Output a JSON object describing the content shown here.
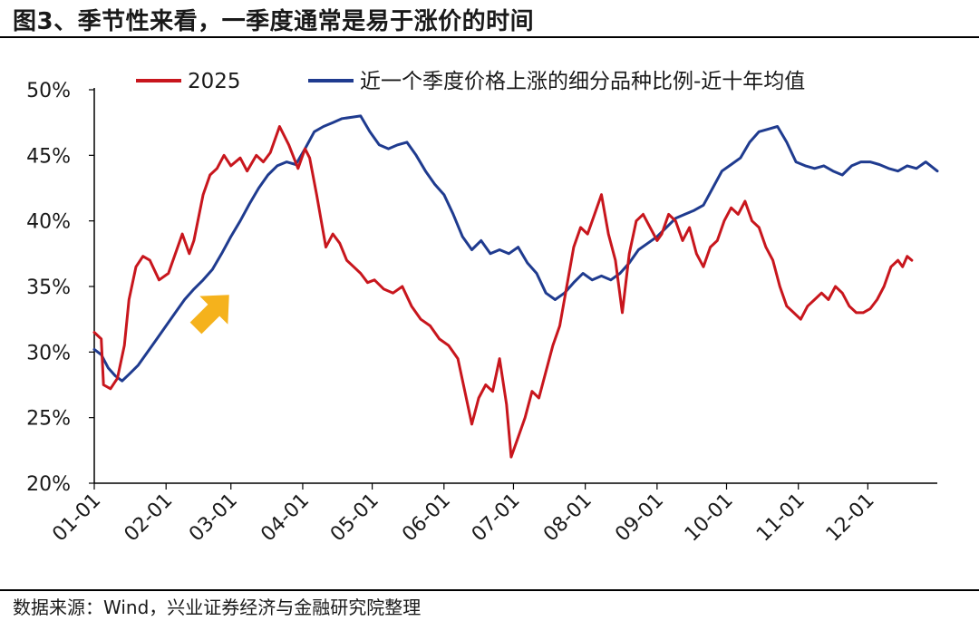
{
  "figure": {
    "title": "图3、季节性来看，一季度通常是易于涨价的时间",
    "source": "数据来源：Wind，兴业证券经济与金融研究院整理"
  },
  "colors": {
    "series_2025": "#c8161d",
    "series_avg": "#1f3b8f",
    "arrow": "#f5b21c",
    "axis": "#000000"
  },
  "chart_data": {
    "type": "line",
    "ylim": [
      20,
      50
    ],
    "y_ticks": [
      "20%",
      "25%",
      "30%",
      "35%",
      "40%",
      "45%",
      "50%"
    ],
    "y_tick_values": [
      20,
      25,
      30,
      35,
      40,
      45,
      50
    ],
    "x_ticks": [
      "01-01",
      "02-01",
      "03-01",
      "04-01",
      "05-01",
      "06-01",
      "07-01",
      "08-01",
      "09-01",
      "10-01",
      "11-01",
      "12-01"
    ],
    "xlim": [
      "01-01",
      "12-31"
    ],
    "legend_position": "top",
    "grid": false,
    "annotation": "yellow arrow pointing up-right near early March",
    "series": [
      {
        "name": "2025",
        "color": "#c8161d",
        "points": [
          [
            "01-01",
            31.5
          ],
          [
            "01-04",
            31.0
          ],
          [
            "01-05",
            27.5
          ],
          [
            "01-08",
            27.2
          ],
          [
            "01-11",
            28.0
          ],
          [
            "01-14",
            30.5
          ],
          [
            "01-16",
            34.0
          ],
          [
            "01-19",
            36.5
          ],
          [
            "01-22",
            37.3
          ],
          [
            "01-25",
            37.0
          ],
          [
            "01-29",
            35.5
          ],
          [
            "02-02",
            36.0
          ],
          [
            "02-06",
            38.0
          ],
          [
            "02-08",
            39.0
          ],
          [
            "02-11",
            37.5
          ],
          [
            "02-13",
            38.5
          ],
          [
            "02-17",
            42.0
          ],
          [
            "02-20",
            43.5
          ],
          [
            "02-23",
            44.0
          ],
          [
            "02-26",
            45.0
          ],
          [
            "03-01",
            44.2
          ],
          [
            "03-05",
            44.8
          ],
          [
            "03-08",
            43.8
          ],
          [
            "03-12",
            45.0
          ],
          [
            "03-15",
            44.5
          ],
          [
            "03-18",
            45.2
          ],
          [
            "03-22",
            47.2
          ],
          [
            "03-26",
            45.8
          ],
          [
            "03-30",
            44.0
          ],
          [
            "04-02",
            45.5
          ],
          [
            "04-04",
            44.8
          ],
          [
            "04-07",
            42.0
          ],
          [
            "04-09",
            40.0
          ],
          [
            "04-11",
            38.0
          ],
          [
            "04-14",
            39.0
          ],
          [
            "04-17",
            38.3
          ],
          [
            "04-20",
            37.0
          ],
          [
            "04-23",
            36.5
          ],
          [
            "04-26",
            36.0
          ],
          [
            "04-29",
            35.3
          ],
          [
            "05-02",
            35.5
          ],
          [
            "05-06",
            34.8
          ],
          [
            "05-10",
            34.5
          ],
          [
            "05-14",
            35.0
          ],
          [
            "05-18",
            33.5
          ],
          [
            "05-22",
            32.5
          ],
          [
            "05-26",
            32.0
          ],
          [
            "05-30",
            31.0
          ],
          [
            "06-03",
            30.5
          ],
          [
            "06-07",
            29.5
          ],
          [
            "06-10",
            27.0
          ],
          [
            "06-13",
            24.5
          ],
          [
            "06-16",
            26.5
          ],
          [
            "06-19",
            27.5
          ],
          [
            "06-22",
            27.0
          ],
          [
            "06-25",
            29.5
          ],
          [
            "06-28",
            26.0
          ],
          [
            "06-30",
            22.0
          ],
          [
            "07-03",
            23.5
          ],
          [
            "07-06",
            25.0
          ],
          [
            "07-09",
            27.0
          ],
          [
            "07-12",
            26.5
          ],
          [
            "07-15",
            28.5
          ],
          [
            "07-18",
            30.5
          ],
          [
            "07-21",
            32.0
          ],
          [
            "07-24",
            35.0
          ],
          [
            "07-27",
            38.0
          ],
          [
            "07-30",
            39.5
          ],
          [
            "08-02",
            39.0
          ],
          [
            "08-05",
            40.5
          ],
          [
            "08-08",
            42.0
          ],
          [
            "08-11",
            39.0
          ],
          [
            "08-14",
            37.0
          ],
          [
            "08-17",
            33.0
          ],
          [
            "08-20",
            37.5
          ],
          [
            "08-23",
            40.0
          ],
          [
            "08-26",
            40.5
          ],
          [
            "08-29",
            39.5
          ],
          [
            "09-01",
            38.5
          ],
          [
            "09-03",
            39.0
          ],
          [
            "09-06",
            40.5
          ],
          [
            "09-09",
            40.0
          ],
          [
            "09-12",
            38.5
          ],
          [
            "09-15",
            39.5
          ],
          [
            "09-18",
            37.5
          ],
          [
            "09-21",
            36.5
          ],
          [
            "09-24",
            38.0
          ],
          [
            "09-27",
            38.5
          ],
          [
            "09-30",
            40.0
          ],
          [
            "10-03",
            41.0
          ],
          [
            "10-06",
            40.5
          ],
          [
            "10-09",
            41.5
          ],
          [
            "10-12",
            40.0
          ],
          [
            "10-15",
            39.5
          ],
          [
            "10-18",
            38.0
          ],
          [
            "10-21",
            37.0
          ],
          [
            "10-24",
            35.0
          ],
          [
            "10-27",
            33.5
          ],
          [
            "10-30",
            33.0
          ],
          [
            "11-02",
            32.5
          ],
          [
            "11-05",
            33.5
          ],
          [
            "11-08",
            34.0
          ],
          [
            "11-11",
            34.5
          ],
          [
            "11-14",
            34.0
          ],
          [
            "11-17",
            35.0
          ],
          [
            "11-20",
            34.5
          ],
          [
            "11-23",
            33.5
          ],
          [
            "11-26",
            33.0
          ],
          [
            "11-29",
            33.0
          ],
          [
            "12-02",
            33.3
          ],
          [
            "12-05",
            34.0
          ],
          [
            "12-08",
            35.0
          ],
          [
            "12-11",
            36.5
          ],
          [
            "12-14",
            37.0
          ],
          [
            "12-16",
            36.5
          ],
          [
            "12-18",
            37.3
          ],
          [
            "12-20",
            37.0
          ]
        ]
      },
      {
        "name": "近一个季度价格上涨的细分品种比例-近十年均值",
        "color": "#1f3b8f",
        "points": [
          [
            "01-01",
            30.2
          ],
          [
            "01-04",
            29.8
          ],
          [
            "01-07",
            28.8
          ],
          [
            "01-10",
            28.2
          ],
          [
            "01-13",
            27.8
          ],
          [
            "01-16",
            28.3
          ],
          [
            "01-20",
            29.0
          ],
          [
            "01-24",
            30.0
          ],
          [
            "01-28",
            31.0
          ],
          [
            "02-01",
            32.0
          ],
          [
            "02-05",
            33.0
          ],
          [
            "02-09",
            34.0
          ],
          [
            "02-13",
            34.8
          ],
          [
            "02-17",
            35.5
          ],
          [
            "02-21",
            36.3
          ],
          [
            "02-25",
            37.5
          ],
          [
            "03-01",
            38.8
          ],
          [
            "03-05",
            40.0
          ],
          [
            "03-09",
            41.3
          ],
          [
            "03-13",
            42.5
          ],
          [
            "03-17",
            43.5
          ],
          [
            "03-21",
            44.2
          ],
          [
            "03-25",
            44.5
          ],
          [
            "03-29",
            44.3
          ],
          [
            "04-02",
            45.5
          ],
          [
            "04-06",
            46.8
          ],
          [
            "04-10",
            47.2
          ],
          [
            "04-14",
            47.5
          ],
          [
            "04-18",
            47.8
          ],
          [
            "04-22",
            47.9
          ],
          [
            "04-26",
            48.0
          ],
          [
            "04-30",
            46.8
          ],
          [
            "05-04",
            45.8
          ],
          [
            "05-08",
            45.5
          ],
          [
            "05-12",
            45.8
          ],
          [
            "05-16",
            46.0
          ],
          [
            "05-20",
            45.0
          ],
          [
            "05-24",
            43.8
          ],
          [
            "05-28",
            42.8
          ],
          [
            "06-01",
            42.0
          ],
          [
            "06-05",
            40.5
          ],
          [
            "06-09",
            38.8
          ],
          [
            "06-13",
            37.8
          ],
          [
            "06-17",
            38.5
          ],
          [
            "06-21",
            37.5
          ],
          [
            "06-25",
            37.8
          ],
          [
            "06-29",
            37.5
          ],
          [
            "07-03",
            38.0
          ],
          [
            "07-07",
            36.8
          ],
          [
            "07-11",
            36.0
          ],
          [
            "07-15",
            34.5
          ],
          [
            "07-19",
            34.0
          ],
          [
            "07-23",
            34.5
          ],
          [
            "07-27",
            35.3
          ],
          [
            "07-31",
            36.0
          ],
          [
            "08-04",
            35.5
          ],
          [
            "08-08",
            35.8
          ],
          [
            "08-12",
            35.5
          ],
          [
            "08-16",
            36.0
          ],
          [
            "08-20",
            36.8
          ],
          [
            "08-24",
            37.8
          ],
          [
            "08-28",
            38.3
          ],
          [
            "09-01",
            38.8
          ],
          [
            "09-05",
            39.5
          ],
          [
            "09-09",
            40.2
          ],
          [
            "09-13",
            40.5
          ],
          [
            "09-17",
            40.8
          ],
          [
            "09-21",
            41.2
          ],
          [
            "09-25",
            42.5
          ],
          [
            "09-29",
            43.8
          ],
          [
            "10-03",
            44.3
          ],
          [
            "10-07",
            44.8
          ],
          [
            "10-11",
            46.0
          ],
          [
            "10-15",
            46.8
          ],
          [
            "10-19",
            47.0
          ],
          [
            "10-23",
            47.2
          ],
          [
            "10-27",
            46.0
          ],
          [
            "10-31",
            44.5
          ],
          [
            "11-04",
            44.2
          ],
          [
            "11-08",
            44.0
          ],
          [
            "11-12",
            44.2
          ],
          [
            "11-16",
            43.8
          ],
          [
            "11-20",
            43.5
          ],
          [
            "11-24",
            44.2
          ],
          [
            "11-28",
            44.5
          ],
          [
            "12-02",
            44.5
          ],
          [
            "12-06",
            44.3
          ],
          [
            "12-10",
            44.0
          ],
          [
            "12-14",
            43.8
          ],
          [
            "12-18",
            44.2
          ],
          [
            "12-22",
            44.0
          ],
          [
            "12-26",
            44.5
          ],
          [
            "12-31",
            43.8
          ]
        ]
      }
    ]
  }
}
